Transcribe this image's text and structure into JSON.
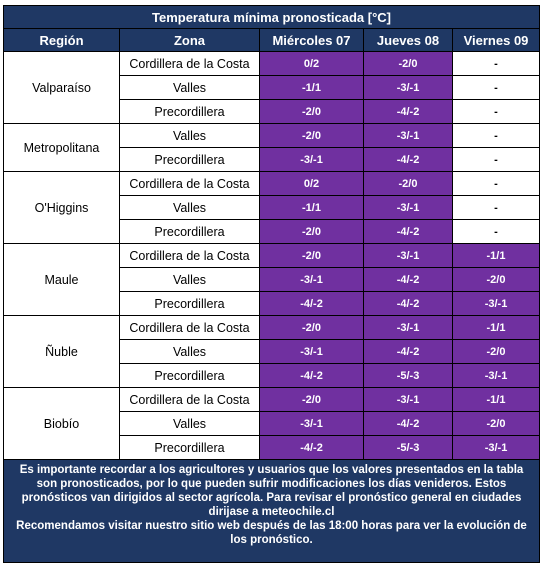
{
  "title": "Temperatura mínima pronosticada [°C]",
  "headers": [
    "Región",
    "Zona",
    "Miércoles 07",
    "Jueves 08",
    "Viernes 09"
  ],
  "colors": {
    "header_bg": "#1f3864",
    "value_bg": "#7030a0"
  },
  "regions": [
    {
      "name": "Valparaíso",
      "rows": [
        {
          "zone": "Cordillera de la Costa",
          "values": [
            "0/2",
            "-2/0",
            "-"
          ]
        },
        {
          "zone": "Valles",
          "values": [
            "-1/1",
            "-3/-1",
            "-"
          ]
        },
        {
          "zone": "Precordillera",
          "values": [
            "-2/0",
            "-4/-2",
            "-"
          ]
        }
      ]
    },
    {
      "name": "Metropolitana",
      "rows": [
        {
          "zone": "Valles",
          "values": [
            "-2/0",
            "-3/-1",
            "-"
          ]
        },
        {
          "zone": "Precordillera",
          "values": [
            "-3/-1",
            "-4/-2",
            "-"
          ]
        }
      ]
    },
    {
      "name": "O'Higgins",
      "rows": [
        {
          "zone": "Cordillera de la Costa",
          "values": [
            "0/2",
            "-2/0",
            "-"
          ]
        },
        {
          "zone": "Valles",
          "values": [
            "-1/1",
            "-3/-1",
            "-"
          ]
        },
        {
          "zone": "Precordillera",
          "values": [
            "-2/0",
            "-4/-2",
            "-"
          ]
        }
      ]
    },
    {
      "name": "Maule",
      "rows": [
        {
          "zone": "Cordillera de la Costa",
          "values": [
            "-2/0",
            "-3/-1",
            "-1/1"
          ]
        },
        {
          "zone": "Valles",
          "values": [
            "-3/-1",
            "-4/-2",
            "-2/0"
          ]
        },
        {
          "zone": "Precordillera",
          "values": [
            "-4/-2",
            "-4/-2",
            "-3/-1"
          ]
        }
      ]
    },
    {
      "name": "Ñuble",
      "rows": [
        {
          "zone": "Cordillera de la Costa",
          "values": [
            "-2/0",
            "-3/-1",
            "-1/1"
          ]
        },
        {
          "zone": "Valles",
          "values": [
            "-3/-1",
            "-4/-2",
            "-2/0"
          ]
        },
        {
          "zone": "Precordillera",
          "values": [
            "-4/-2",
            "-5/-3",
            "-3/-1"
          ]
        }
      ]
    },
    {
      "name": "Biobío",
      "rows": [
        {
          "zone": "Cordillera de la Costa",
          "values": [
            "-2/0",
            "-3/-1",
            "-1/1"
          ]
        },
        {
          "zone": "Valles",
          "values": [
            "-3/-1",
            "-4/-2",
            "-2/0"
          ]
        },
        {
          "zone": "Precordillera",
          "values": [
            "-4/-2",
            "-5/-3",
            "-3/-1"
          ]
        }
      ]
    }
  ],
  "note": {
    "line1": "Es importante recordar a los agricultores y usuarios que los valores presentados en la tabla son pronosticados, por lo que pueden sufrir modificaciones los días venideros. Estos pronósticos van dirigidos al sector agrícola. Para revisar el pronóstico general en ciudades dirijase a meteochile.cl",
    "line2": "Recomendamos visitar nuestro sitio web después de las 18:00 horas para ver la evolución de los pronóstico."
  }
}
